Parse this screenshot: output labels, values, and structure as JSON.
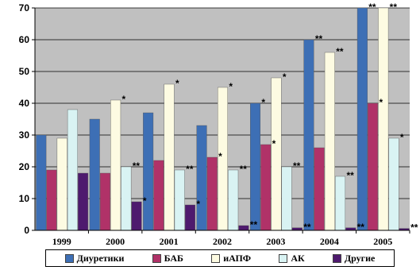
{
  "chart_data": {
    "type": "bar",
    "categories": [
      "1999",
      "2000",
      "2001",
      "2002",
      "2003",
      "2004",
      "2005"
    ],
    "ylim": [
      0,
      70
    ],
    "yticks": [
      "0",
      "10",
      "20",
      "30",
      "40",
      "50",
      "60",
      "70"
    ],
    "grid": true,
    "legend_position": "bottom",
    "series": [
      {
        "name": "Диуретики",
        "color": "#3d6fb5",
        "values": [
          30,
          35,
          37,
          33,
          40,
          60,
          70
        ],
        "annotations": [
          "",
          "",
          "",
          "",
          "*",
          "**",
          "**"
        ]
      },
      {
        "name": "БАБ",
        "color": "#b03268",
        "values": [
          19,
          18,
          22,
          23,
          27,
          26,
          40
        ],
        "annotations": [
          "",
          "",
          "",
          "*",
          "*",
          "",
          "*"
        ]
      },
      {
        "name": "иАПФ",
        "color": "#fdfbe2",
        "values": [
          29,
          41,
          46,
          45,
          48,
          56,
          70
        ],
        "annotations": [
          "",
          "*",
          "*",
          "*",
          "*",
          "**",
          "**"
        ]
      },
      {
        "name": "АК",
        "color": "#d9f3f3",
        "values": [
          38,
          20,
          19,
          19,
          20,
          17,
          29
        ],
        "annotations": [
          "",
          "**",
          "**",
          "**",
          "**",
          "**",
          "*"
        ]
      },
      {
        "name": "Другие",
        "color": "#4e1a6e",
        "values": [
          18,
          9,
          8,
          1.5,
          0.8,
          0.8,
          0.6
        ],
        "annotations": [
          "",
          "*",
          "*",
          "**",
          "**",
          "**",
          "**"
        ]
      }
    ]
  }
}
